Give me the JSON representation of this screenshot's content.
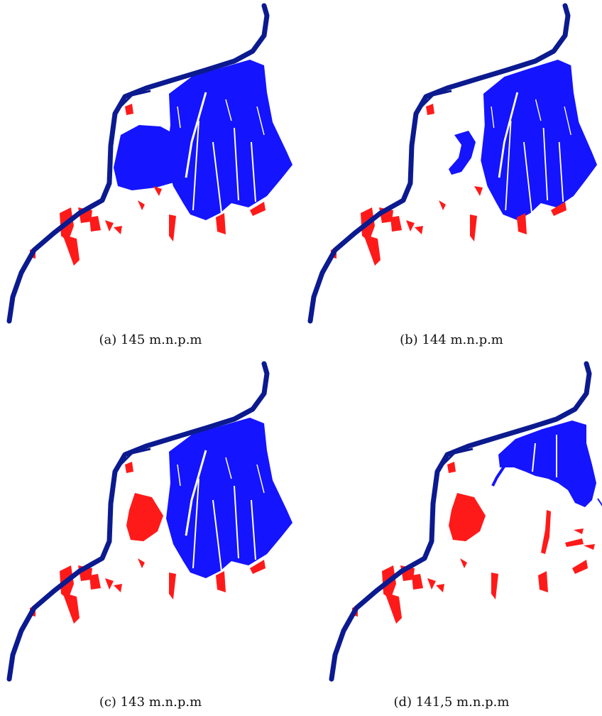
{
  "figure": {
    "panels": [
      {
        "id": "a",
        "caption": "(a) 145 m.n.p.m",
        "flood_level_mnpm": 145,
        "flooded_areas": "extensive",
        "central_basin": "flooded"
      },
      {
        "id": "b",
        "caption": "(b) 144 m.n.p.m",
        "flood_level_mnpm": 144,
        "flooded_areas": "extensive",
        "central_basin": "partially-flooded"
      },
      {
        "id": "c",
        "caption": "(c) 143 m.n.p.m",
        "flood_level_mnpm": 143,
        "flooded_areas": "extensive",
        "central_basin": "dry"
      },
      {
        "id": "d",
        "caption": "(d) 141,5 m.n.p.m",
        "flood_level_mnpm": 141.5,
        "flooded_areas": "reduced",
        "central_basin": "dry"
      }
    ],
    "colors": {
      "river": "#0b1a8f",
      "flooded": "#1414ff",
      "dry_depression": "#ff1a1a",
      "background": "#ffffff"
    }
  }
}
